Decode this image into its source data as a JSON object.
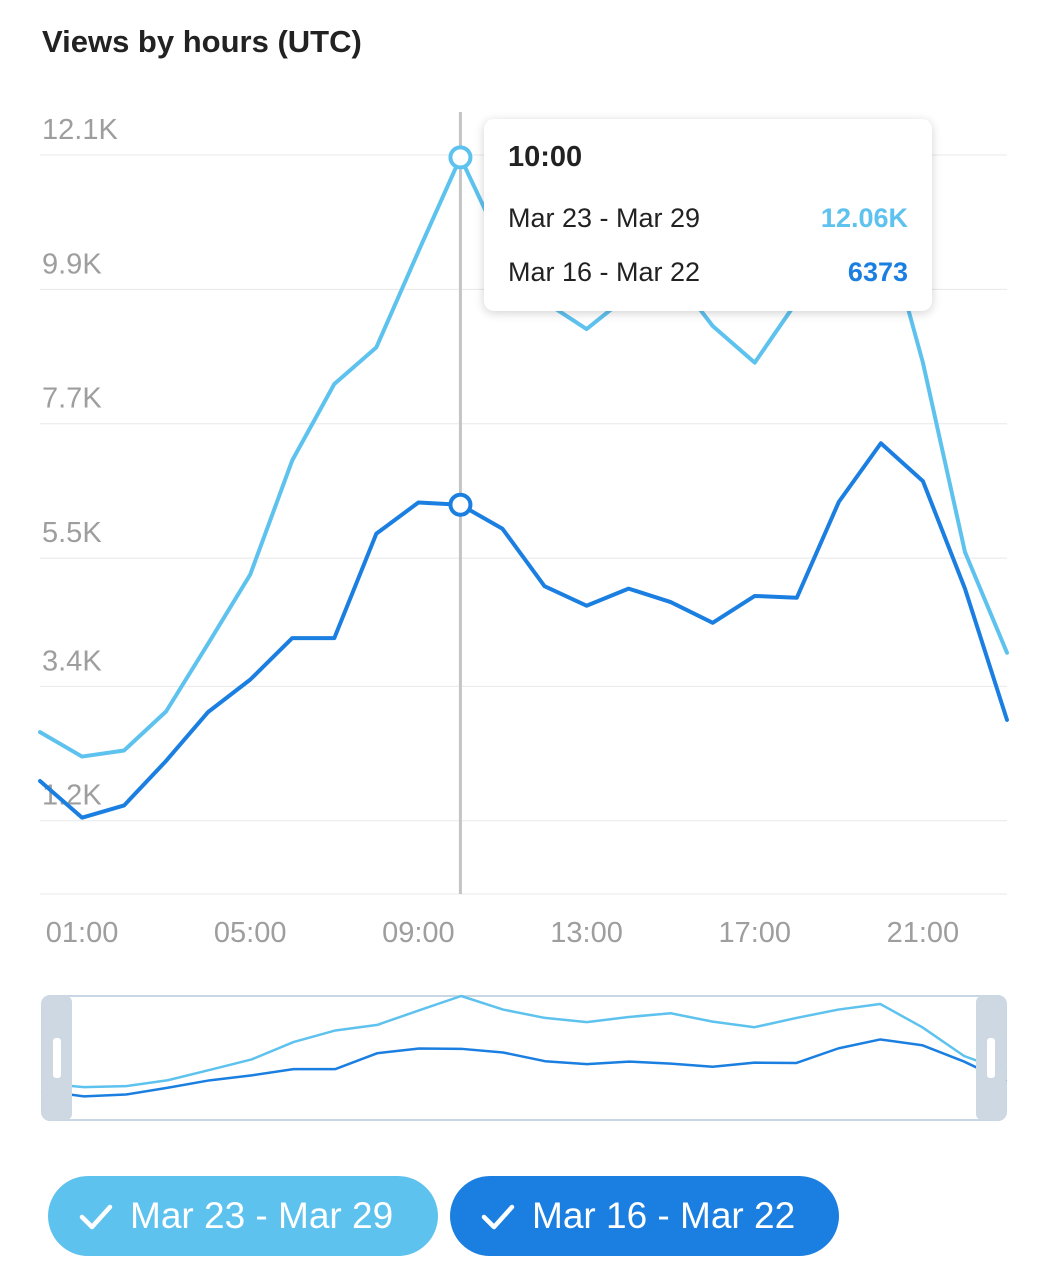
{
  "title": "Views by hours (UTC)",
  "colors": {
    "series_a": "#5ec2ee",
    "series_b": "#1a7fe0",
    "grid": "#e8e8e8",
    "axis_text": "#9e9e9e"
  },
  "tooltip": {
    "time": "10:00",
    "rows": [
      {
        "label": "Mar 23 - Mar 29",
        "value": "12.06K"
      },
      {
        "label": "Mar 16 - Mar 22",
        "value": "6373"
      }
    ]
  },
  "legend": [
    {
      "label": "Mar 23 - Mar 29",
      "checked": true
    },
    {
      "label": "Mar 16 - Mar 22",
      "checked": true
    }
  ],
  "chart_data": {
    "type": "line",
    "title": "Views by hours (UTC)",
    "xlabel": "",
    "ylabel": "",
    "x": [
      0,
      1,
      2,
      3,
      4,
      5,
      6,
      7,
      8,
      9,
      10,
      11,
      12,
      13,
      14,
      15,
      16,
      17,
      18,
      19,
      20,
      21,
      22,
      23
    ],
    "x_ticks": [
      {
        "x": 1,
        "label": "01:00"
      },
      {
        "x": 5,
        "label": "05:00"
      },
      {
        "x": 9,
        "label": "09:00"
      },
      {
        "x": 13,
        "label": "13:00"
      },
      {
        "x": 17,
        "label": "17:00"
      },
      {
        "x": 21,
        "label": "21:00"
      }
    ],
    "y_ticks": [
      {
        "y": 1200,
        "label": "1.2K"
      },
      {
        "y": 3400,
        "label": "3.4K"
      },
      {
        "y": 5500,
        "label": "5.5K"
      },
      {
        "y": 7700,
        "label": "7.7K"
      },
      {
        "y": 9900,
        "label": "9.9K"
      },
      {
        "y": 12100,
        "label": "12.1K"
      }
    ],
    "ylim": [
      0,
      13000
    ],
    "xlim": [
      0,
      23
    ],
    "grid": true,
    "highlight_x": 10,
    "series": [
      {
        "name": "Mar 23 - Mar 29",
        "values": [
          2650,
          2250,
          2350,
          2990,
          4100,
          5230,
          7100,
          8350,
          8950,
          10520,
          12060,
          10600,
          9700,
          9250,
          9800,
          10200,
          9300,
          8700,
          9700,
          10600,
          11200,
          8700,
          5600,
          3950
        ]
      },
      {
        "name": "Mar 16 - Mar 22",
        "values": [
          1850,
          1250,
          1450,
          2180,
          2980,
          3510,
          4190,
          4190,
          5900,
          6410,
          6373,
          5980,
          5040,
          4720,
          5000,
          4780,
          4440,
          4880,
          4850,
          6420,
          7380,
          6760,
          5000,
          2850
        ]
      }
    ]
  }
}
